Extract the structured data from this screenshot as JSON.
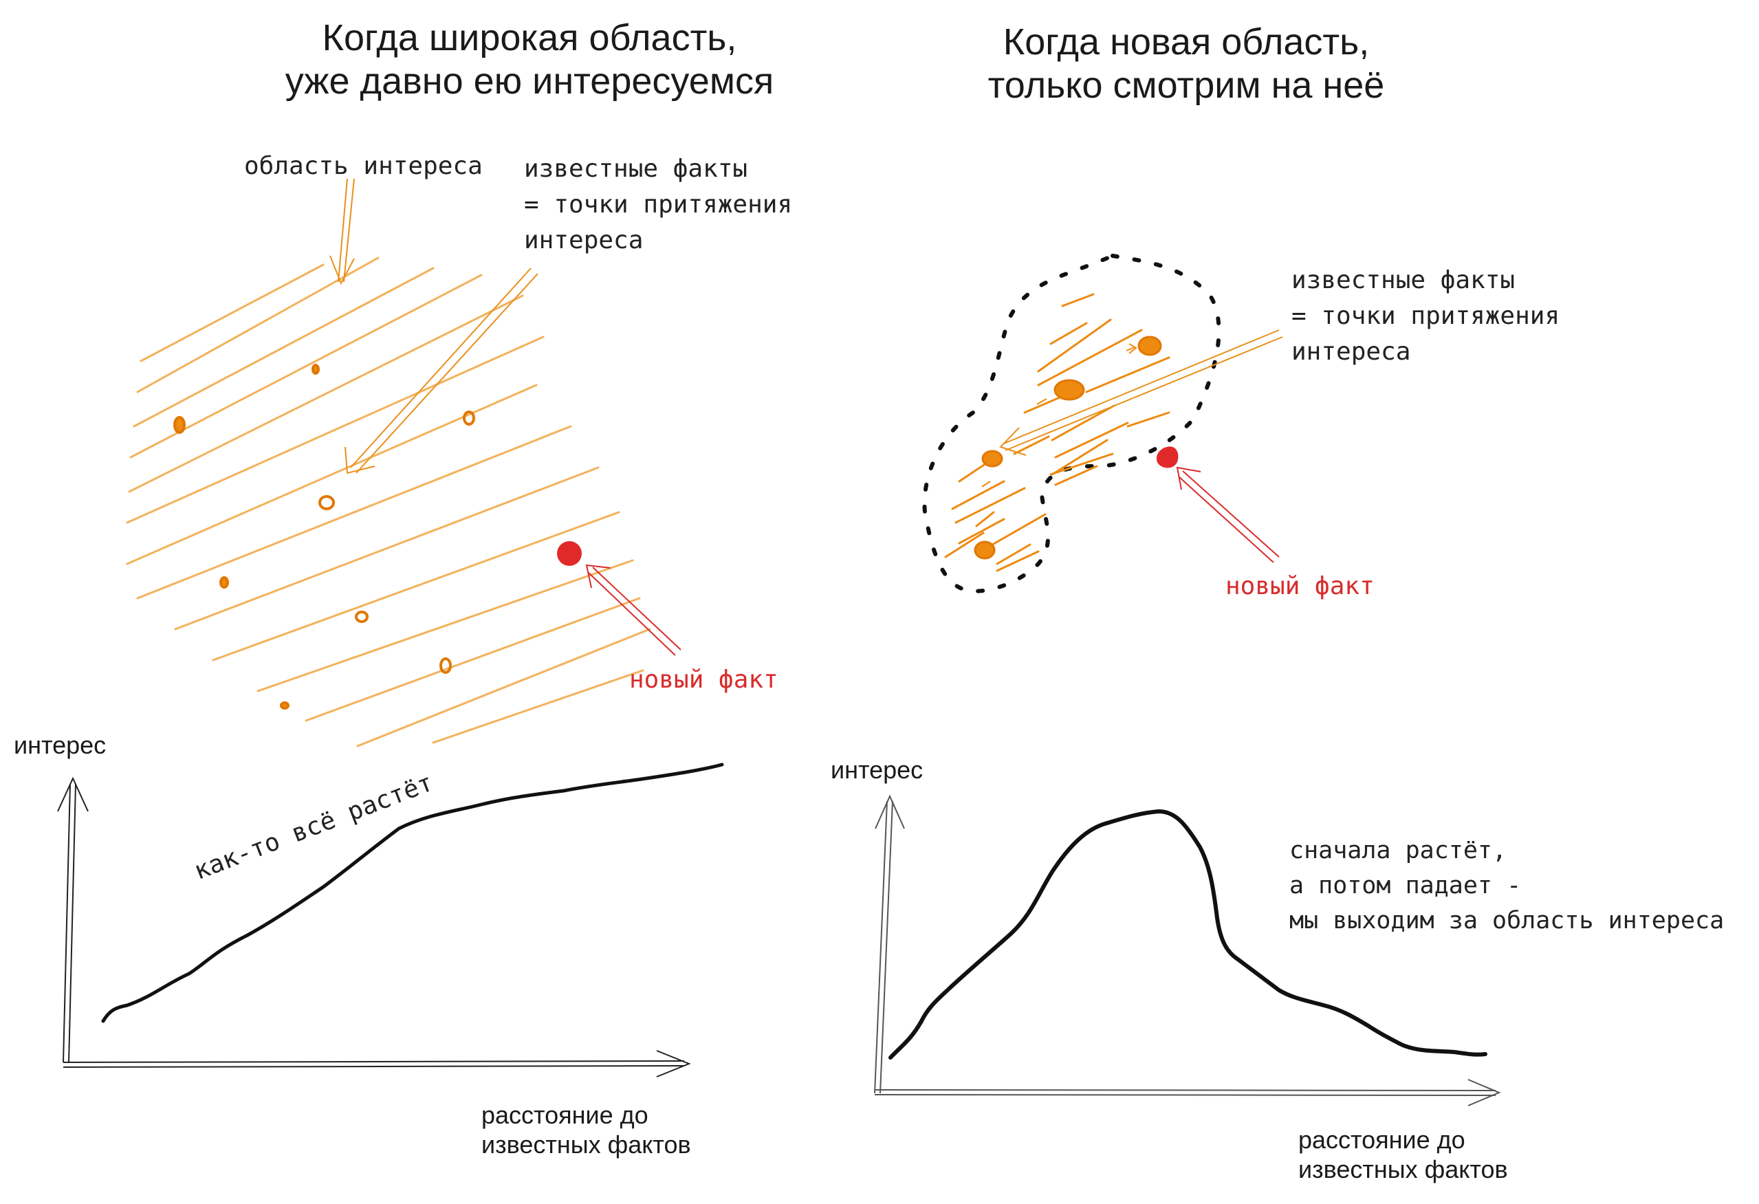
{
  "left_panel": {
    "title": "Когда широкая область,\nуже давно ею интересуемся",
    "label_area": "область интереса",
    "label_facts": "известные факты\n= точки притяжения\nинтереса",
    "label_new_fact": "новый факт",
    "graph": {
      "y_label": "интерес",
      "x_label": "расстояние до\nизвестных фактов",
      "curve_note": "как-то всё растёт",
      "trend": "monotonic increase"
    }
  },
  "right_panel": {
    "title": "Когда новая область,\nтолько смотрим на неё",
    "label_facts": "известные факты\n= точки притяжения\nинтереса",
    "label_new_fact": "новый факт",
    "graph": {
      "y_label": "интерес",
      "x_label": "расстояние до\nизвестных фактов",
      "curve_note": "сначала растёт,\nа потом падает -\nмы выходим за область интереса",
      "trend": "rises then falls"
    }
  },
  "colors": {
    "hatch": "#f3b25a",
    "fact": "#ee8a10",
    "fact_stroke": "#e07800",
    "new_fact": "#e02a2a",
    "ink": "#111111"
  }
}
